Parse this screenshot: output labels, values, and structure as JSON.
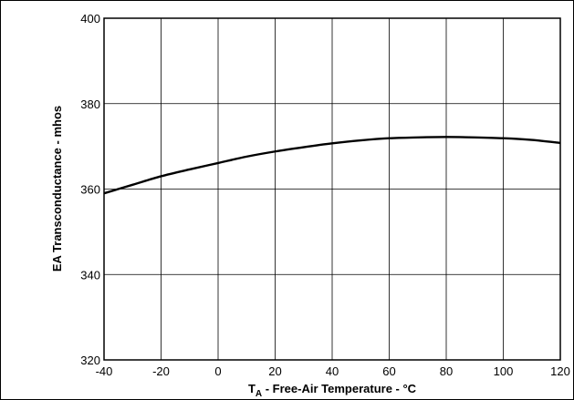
{
  "chart_data": {
    "type": "line",
    "title": "",
    "xlabel_main": "T",
    "xlabel_sub": "A",
    "xlabel_rest": " - Free-Air Temperature - °C",
    "ylabel": "EA Transconductance - mhos",
    "xlim": [
      -40,
      120
    ],
    "ylim": [
      320,
      400
    ],
    "xticks": [
      -40,
      -20,
      0,
      20,
      40,
      60,
      80,
      100,
      120
    ],
    "yticks": [
      320,
      340,
      360,
      380,
      400
    ],
    "grid": true,
    "series": [
      {
        "x": [
          -40,
          -30,
          -20,
          -10,
          0,
          10,
          20,
          30,
          40,
          50,
          60,
          70,
          80,
          90,
          100,
          110,
          120
        ],
        "y": [
          359,
          361,
          363,
          364.6,
          366.1,
          367.6,
          368.8,
          369.8,
          370.7,
          371.4,
          371.9,
          372.1,
          372.2,
          372.1,
          371.9,
          371.5,
          370.8
        ]
      }
    ]
  }
}
